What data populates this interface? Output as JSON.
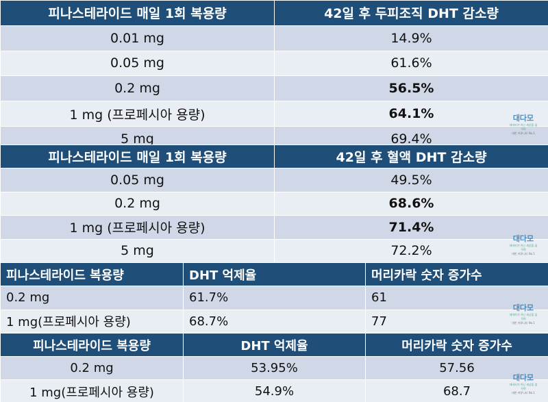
{
  "table1": {
    "headers": [
      "피나스테라이드 매일 1회 복용량",
      "42일 후 두피조직 DHT 감소량"
    ],
    "rows": [
      {
        "dose": "0.01 mg",
        "value": "14.9%"
      },
      {
        "dose": "0.05 mg",
        "value": "61.6%"
      },
      {
        "dose": "0.2 mg",
        "value": "56.5%"
      },
      {
        "dose": "1 mg (프로페시아 용량)",
        "value": "64.1%"
      },
      {
        "dose": "5 mg",
        "value": "69.4%"
      }
    ]
  },
  "table2": {
    "headers": [
      "피나스테라이드 매일 1회 복용량",
      "42일 후 혈액 DHT 감소량"
    ],
    "rows": [
      {
        "dose": "0.05 mg",
        "value": "49.5%"
      },
      {
        "dose": "0.2 mg",
        "value": "68.6%"
      },
      {
        "dose": "1 mg (프로페시아 용량)",
        "value": "71.4%"
      },
      {
        "dose": "5 mg",
        "value": "72.2%"
      }
    ]
  },
  "table3": {
    "headers": [
      "피나스테라이드 복용량",
      "DHT 억제율",
      "머리카락 숫자 증가수"
    ],
    "rows": [
      {
        "dose": "0.2 mg",
        "dht": "61.7%",
        "hair": "61"
      },
      {
        "dose": "1 mg(프로페시아 용량)",
        "dht": "68.7%",
        "hair": "77"
      }
    ]
  },
  "table4": {
    "headers": [
      "피나스테라이드 복용량",
      "DHT 억제율",
      "머리카락 숫자 증가수"
    ],
    "rows": [
      {
        "dose": "0.2 mg",
        "dht": "53.95%",
        "hair": "57.56"
      },
      {
        "dose": "1 mg(프로페시아 용량)",
        "dht": "54.9%",
        "hair": "68.7"
      }
    ]
  },
  "watermark": {
    "logo": "대다모",
    "tagline": "대머리가 아닌 세상을 꿈꾸며",
    "caption": "대한 커뮤니티 No.1"
  }
}
